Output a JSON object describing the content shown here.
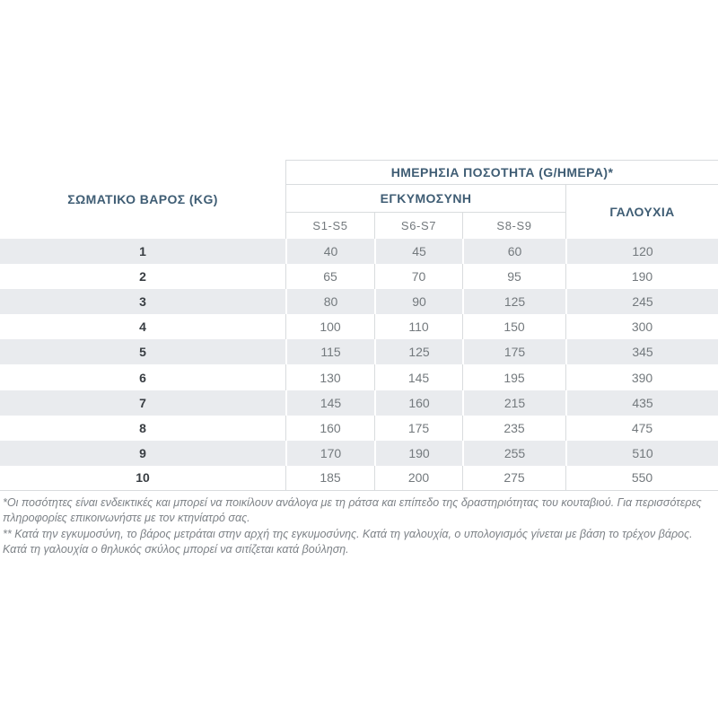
{
  "table": {
    "daily_quantity_header": "ΗΜΕΡΗΣΙΑ ΠΟΣΟΤΗΤΑ (G/ΗΜΕΡΑ)*",
    "body_weight_header": "ΣΩΜΑΤΙΚΟ ΒΑΡΟΣ (KG)",
    "pregnancy_header": "ΕΓΚΥΜΟΣΥΝΗ",
    "lactation_header": "ΓΑΛΟΥΧΙΑ",
    "sub_headers": [
      "S1-S5",
      "S6-S7",
      "S8-S9"
    ],
    "rows": [
      {
        "weight": "1",
        "s1s5": "40",
        "s6s7": "45",
        "s8s9": "60",
        "lactation": "120"
      },
      {
        "weight": "2",
        "s1s5": "65",
        "s6s7": "70",
        "s8s9": "95",
        "lactation": "190"
      },
      {
        "weight": "3",
        "s1s5": "80",
        "s6s7": "90",
        "s8s9": "125",
        "lactation": "245"
      },
      {
        "weight": "4",
        "s1s5": "100",
        "s6s7": "110",
        "s8s9": "150",
        "lactation": "300"
      },
      {
        "weight": "5",
        "s1s5": "115",
        "s6s7": "125",
        "s8s9": "175",
        "lactation": "345"
      },
      {
        "weight": "6",
        "s1s5": "130",
        "s6s7": "145",
        "s8s9": "195",
        "lactation": "390"
      },
      {
        "weight": "7",
        "s1s5": "145",
        "s6s7": "160",
        "s8s9": "215",
        "lactation": "435"
      },
      {
        "weight": "8",
        "s1s5": "160",
        "s6s7": "175",
        "s8s9": "235",
        "lactation": "475"
      },
      {
        "weight": "9",
        "s1s5": "170",
        "s6s7": "190",
        "s8s9": "255",
        "lactation": "510"
      },
      {
        "weight": "10",
        "s1s5": "185",
        "s6s7": "200",
        "s8s9": "275",
        "lactation": "550"
      }
    ]
  },
  "footnotes": {
    "quantities_note": "*Οι ποσότητες είναι ενδεικτικές και μπορεί να ποικίλουν ανάλογα με τη ράτσα και επίπεδο της δραστηριότητας του κουταβιού. Για περισσότερες πληροφορίες επικοινωνήστε με τον κτηνίατρό σας.",
    "pregnancy_note": "** Κατά την εγκυμοσύνη, το βάρος μετράται στην αρχή της εγκυμοσύνης. Κατά τη γαλουχία, ο υπολογισμός γίνεται με βάση το τρέχον βάρος. Κατά τη γαλουχία ο θηλυκός σκύλος μπορεί να σιτίζεται κατά βούληση."
  },
  "colors": {
    "accent": "#3f5d74",
    "stripe": "#e9ebee",
    "border": "#d9dcde",
    "value_text": "#73797d",
    "weight_text": "#383d42",
    "footnote_text": "#7d8287",
    "bg": "#ffffff"
  }
}
